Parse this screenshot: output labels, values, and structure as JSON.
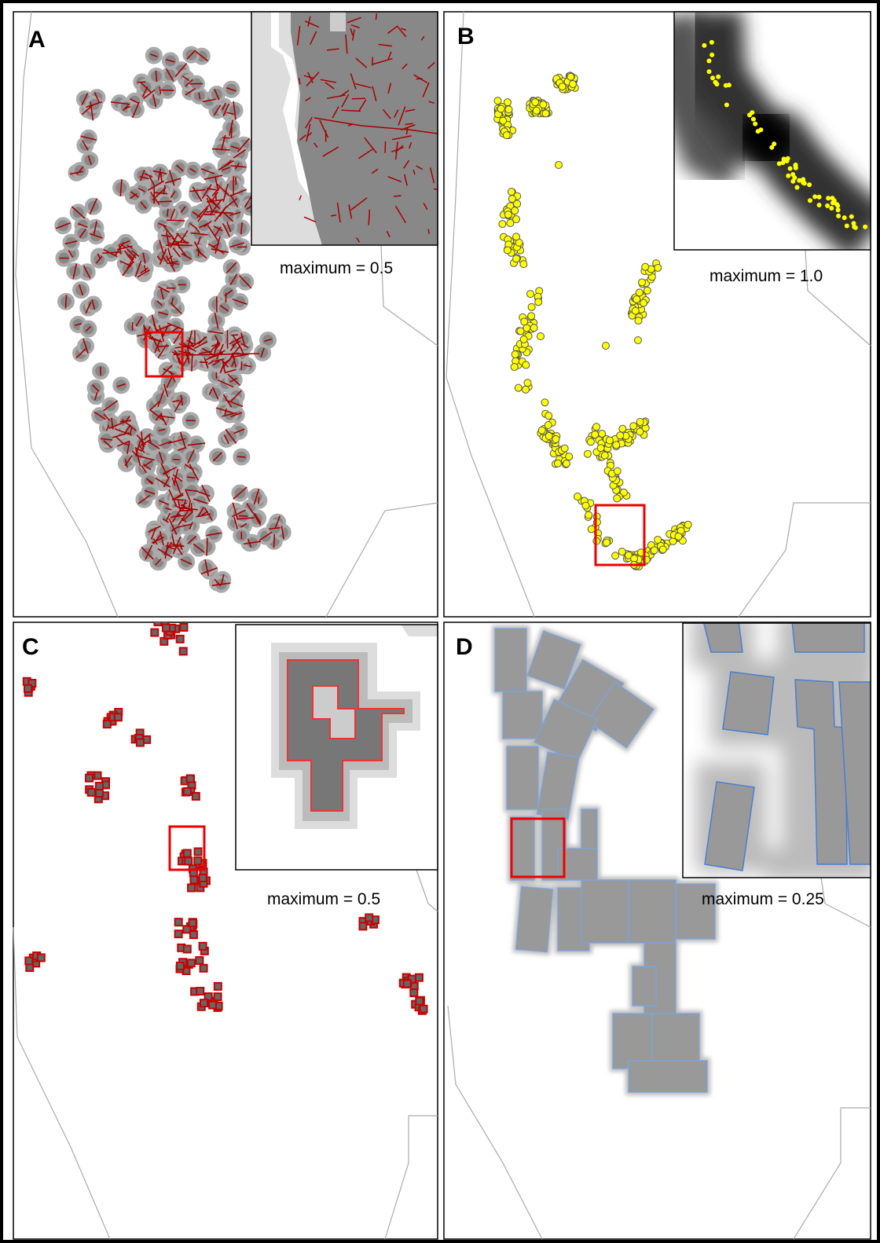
{
  "panels": [
    {
      "label": "A",
      "caption": "maximum = 0.5"
    },
    {
      "label": "B",
      "caption": "maximum = 1.0"
    },
    {
      "label": "C",
      "caption": "maximum = 0.5"
    },
    {
      "label": "D",
      "caption": "maximum = 0.25"
    }
  ]
}
